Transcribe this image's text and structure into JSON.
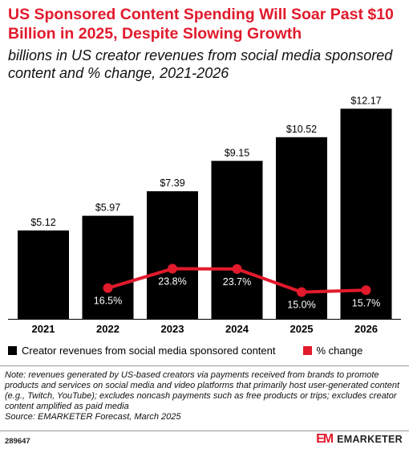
{
  "header": {
    "title": "US Sponsored Content Spending Will Soar Past $10 Billion in 2025, Despite Slowing Growth",
    "subtitle": "billions in US creator revenues from social media sponsored content and % change, 2021-2026"
  },
  "chart_data": {
    "type": "bar",
    "categories": [
      "2021",
      "2022",
      "2023",
      "2024",
      "2025",
      "2026"
    ],
    "series": [
      {
        "name": "Creator revenues from social media sponsored content",
        "type": "bar",
        "values": [
          5.12,
          5.97,
          7.39,
          9.15,
          10.52,
          12.17
        ],
        "labels": [
          "$5.12",
          "$5.97",
          "$7.39",
          "$9.15",
          "$10.52",
          "$12.17"
        ],
        "color": "#000000"
      },
      {
        "name": "% change",
        "type": "line",
        "values": [
          null,
          16.5,
          23.8,
          23.7,
          15.0,
          15.7
        ],
        "labels": [
          "",
          "16.5%",
          "23.8%",
          "23.7%",
          "15.0%",
          "15.7%"
        ],
        "color": "#e11a2c"
      }
    ],
    "legend_position": "bottom"
  },
  "footer": {
    "note": "Note: revenues generated by US-based creators via payments received from brands to promote products and services on social media and video platforms that primarily host user-generated content (e.g., Twitch, YouTube); excludes noncash payments such as free products or trips; excludes creator content amplified as paid media",
    "source": "Source: EMARKETER Forecast, March 2025",
    "chart_id": "289647",
    "brand_logo": "EM",
    "brand_name": "EMARKETER"
  }
}
